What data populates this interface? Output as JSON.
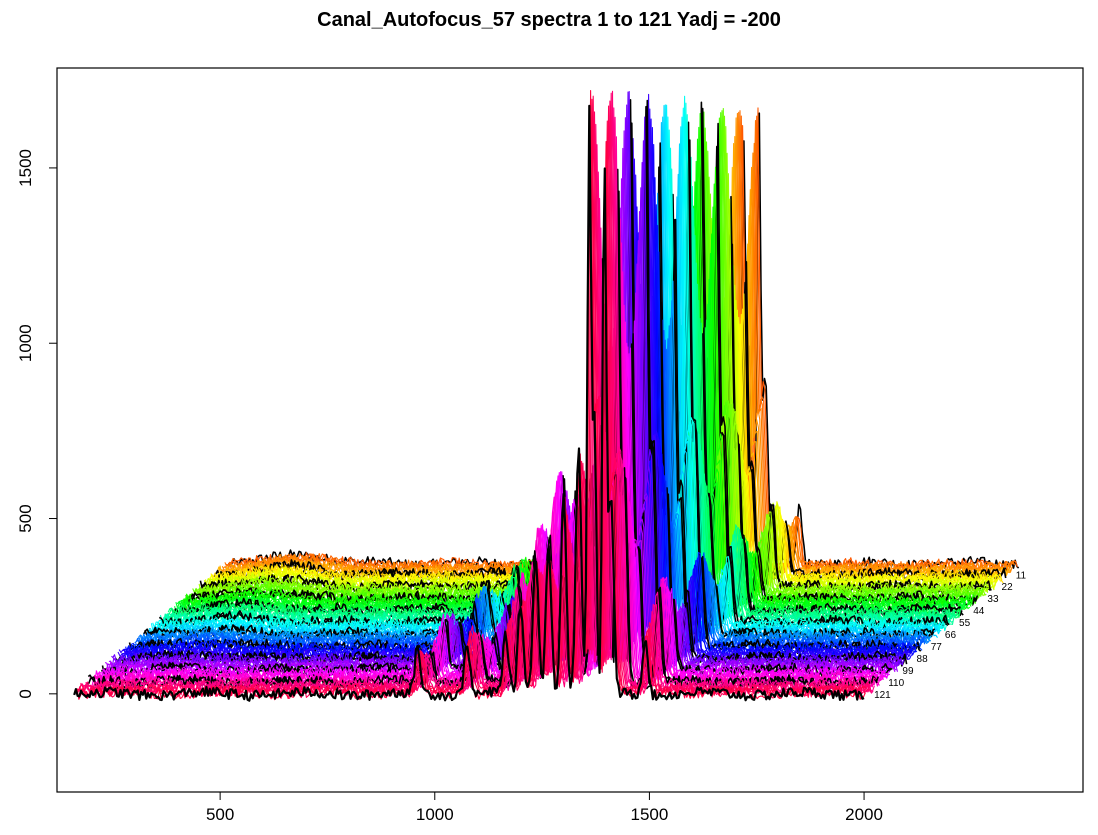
{
  "chart_data": {
    "type": "line",
    "title": "Canal_Autofocus_57  spectra 1 to 121 Yadj = -200",
    "xlabel": "",
    "ylabel": "",
    "xlim": [
      120,
      2510
    ],
    "ylim": [
      -280,
      1785
    ],
    "x_ticks": [
      500,
      1000,
      1500,
      2000
    ],
    "y_ticks": [
      0,
      500,
      1000,
      1500
    ],
    "spectrum_range": [
      160,
      2000
    ],
    "n_spectra": 121,
    "offset_per_spectrum": {
      "x": 3.0,
      "y": 3.1
    },
    "grid": false,
    "colors": {
      "first_spectrum": "#ff4500",
      "last_spectrum": "#ff0040",
      "highlight": "#000000"
    },
    "labeled_spectra": [
      {
        "label": "11",
        "index": 11
      },
      {
        "label": "22",
        "index": 22
      },
      {
        "label": "33",
        "index": 33
      },
      {
        "label": "44",
        "index": 44
      },
      {
        "label": "55",
        "index": 55
      },
      {
        "label": "66",
        "index": 66
      },
      {
        "label": "77",
        "index": 77
      },
      {
        "label": "88",
        "index": 88
      },
      {
        "label": "99",
        "index": 99
      },
      {
        "label": "110",
        "index": 110
      },
      {
        "label": "121",
        "index": 121
      }
    ],
    "peaks": [
      {
        "x": 960,
        "height": 160
      },
      {
        "x": 1075,
        "height": 170
      },
      {
        "x": 1165,
        "height": 300
      },
      {
        "x": 1200,
        "height": 450
      },
      {
        "x": 1235,
        "height": 600
      },
      {
        "x": 1265,
        "height": 530
      },
      {
        "x": 1300,
        "height": 620
      },
      {
        "x": 1335,
        "height": 700
      },
      {
        "x": 1360,
        "height": 1700
      },
      {
        "x": 1372,
        "height": 820
      },
      {
        "x": 1395,
        "height": 1700
      },
      {
        "x": 1410,
        "height": 700
      },
      {
        "x": 1490,
        "height": 300
      }
    ]
  }
}
